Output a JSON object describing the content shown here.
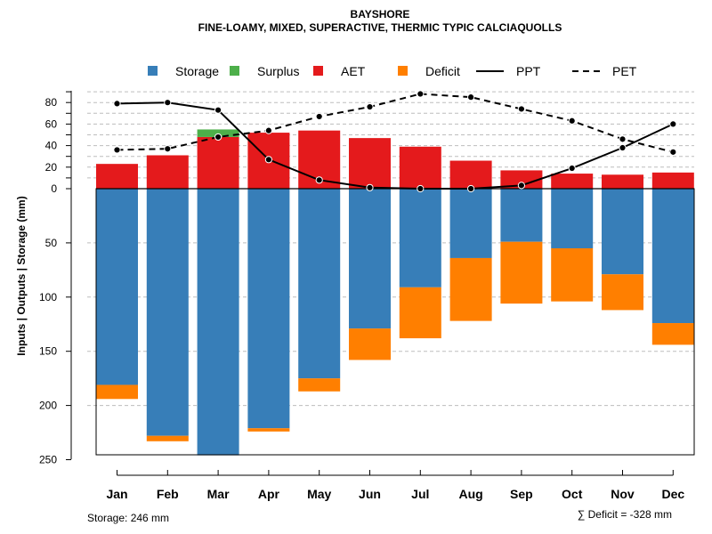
{
  "chart_data": {
    "type": "bar",
    "title": "BAYSHORE",
    "subtitle": "FINE-LOAMY, MIXED, SUPERACTIVE, THERMIC TYPIC CALCIAQUOLLS",
    "ylabel": "Inputs | Outputs | Storage    (mm)",
    "categories": [
      "Jan",
      "Feb",
      "Mar",
      "Apr",
      "May",
      "Jun",
      "Jul",
      "Aug",
      "Sep",
      "Oct",
      "Nov",
      "Dec"
    ],
    "ylim_upper": [
      0,
      88
    ],
    "ylim_lower": [
      0,
      250
    ],
    "upper_ticks": [
      "0",
      "20",
      "40",
      "60",
      "80"
    ],
    "lower_ticks": [
      "50",
      "100",
      "150",
      "200",
      "250"
    ],
    "legend": [
      {
        "label": "Storage",
        "kind": "box",
        "color": "#377eb8"
      },
      {
        "label": "Surplus",
        "kind": "box",
        "color": "#4daf4a"
      },
      {
        "label": "AET",
        "kind": "box",
        "color": "#e41a1c"
      },
      {
        "label": "Deficit",
        "kind": "box",
        "color": "#ff7f00"
      },
      {
        "label": "PPT",
        "kind": "solid",
        "color": "#000000"
      },
      {
        "label": "PET",
        "kind": "dashed",
        "color": "#000000"
      }
    ],
    "series": [
      {
        "name": "Storage",
        "values": [
          181,
          228,
          246,
          221,
          175,
          129,
          91,
          64,
          49,
          55,
          79,
          124
        ]
      },
      {
        "name": "Surplus",
        "values": [
          0,
          0,
          7,
          0,
          0,
          0,
          0,
          0,
          0,
          0,
          0,
          0
        ]
      },
      {
        "name": "AET",
        "values": [
          23,
          31,
          48,
          52,
          54,
          47,
          39,
          26,
          17,
          14,
          13,
          15
        ]
      },
      {
        "name": "Deficit",
        "values": [
          13,
          5,
          0,
          3,
          12,
          29,
          47,
          58,
          57,
          49,
          33,
          20
        ]
      },
      {
        "name": "PPT",
        "values": [
          79,
          80,
          73,
          27,
          8,
          1,
          0,
          0,
          3,
          19,
          38,
          60
        ]
      },
      {
        "name": "PET",
        "values": [
          36,
          37,
          48,
          54,
          67,
          76,
          88,
          85,
          74,
          63,
          46,
          34
        ]
      }
    ],
    "storage_label": "Storage: 246 mm",
    "deficit_label": "∑ Deficit = -328 mm"
  }
}
